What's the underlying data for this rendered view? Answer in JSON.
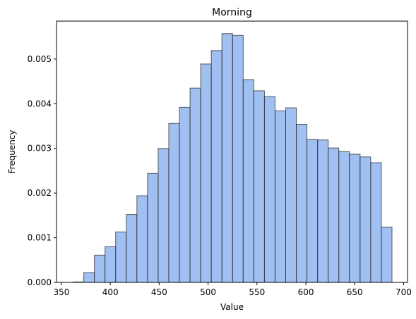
{
  "chart_data": {
    "type": "bar",
    "title": "Morning",
    "xlabel": "Value",
    "ylabel": "Frequency",
    "xlim": [
      345,
      704
    ],
    "ylim": [
      0,
      0.00585
    ],
    "xticks": [
      350,
      400,
      450,
      500,
      550,
      600,
      650,
      700
    ],
    "xtick_labels": [
      "350",
      "400",
      "450",
      "500",
      "550",
      "600",
      "650",
      "700"
    ],
    "yticks": [
      0,
      0.001,
      0.002,
      0.003,
      0.004,
      0.005
    ],
    "ytick_labels": [
      "0.000",
      "0.001",
      "0.002",
      "0.003",
      "0.004",
      "0.005"
    ],
    "grid": false,
    "bar_color": "#6d9eeb",
    "bar_alpha": 0.65,
    "edge_color": "#2b2b2b",
    "bin_start": 362,
    "bin_width": 10.87,
    "values": [
      1e-05,
      0.00022,
      0.00061,
      0.0008,
      0.00113,
      0.00152,
      0.00194,
      0.00244,
      0.003,
      0.00356,
      0.00392,
      0.00435,
      0.00489,
      0.00519,
      0.00557,
      0.00553,
      0.00454,
      0.00429,
      0.00416,
      0.00384,
      0.00391,
      0.00354,
      0.0032,
      0.00319,
      0.00301,
      0.00293,
      0.00287,
      0.00281,
      0.00268,
      0.00124
    ]
  }
}
